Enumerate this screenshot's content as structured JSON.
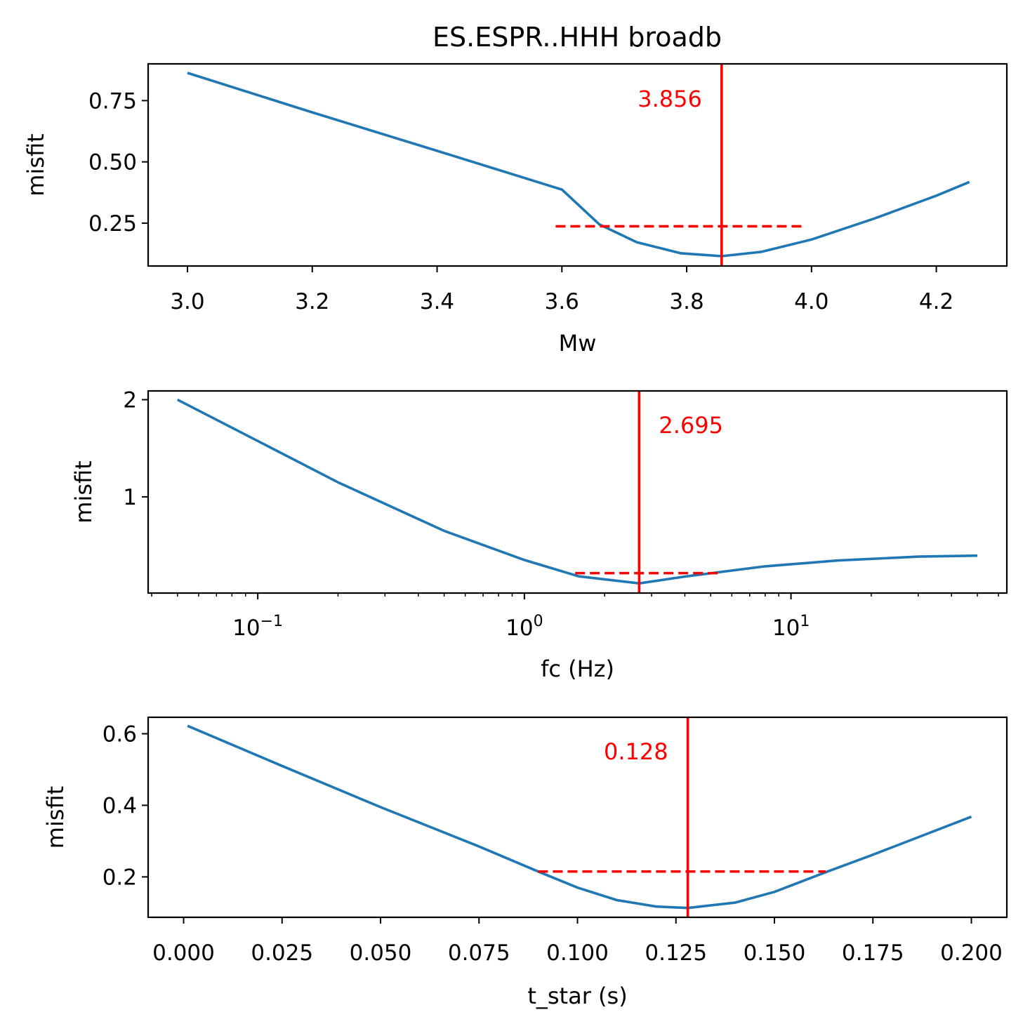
{
  "figure_title": "ES.ESPR..HHH broadb",
  "chart_data": [
    {
      "type": "line",
      "title": "ES.ESPR..HHH broadb",
      "xlabel": "Mw",
      "ylabel": "misfit",
      "xscale": "linear",
      "xlim": [
        2.937,
        4.313
      ],
      "ylim": [
        0.075,
        0.9
      ],
      "xticks": [
        3.0,
        3.2,
        3.4,
        3.6,
        3.8,
        4.0,
        4.2
      ],
      "xtick_labels": [
        "3.0",
        "3.2",
        "3.4",
        "3.6",
        "3.8",
        "4.0",
        "4.2"
      ],
      "yticks": [
        0.25,
        0.5,
        0.75
      ],
      "ytick_labels": [
        "0.25",
        "0.50",
        "0.75"
      ],
      "series": [
        {
          "color": "#1f77b4",
          "x": [
            3.0,
            3.2,
            3.4,
            3.6,
            3.66,
            3.72,
            3.79,
            3.856,
            3.92,
            4.0,
            4.1,
            4.2,
            4.253
          ],
          "y": [
            0.863,
            0.702,
            0.545,
            0.387,
            0.245,
            0.172,
            0.127,
            0.115,
            0.133,
            0.183,
            0.268,
            0.362,
            0.418
          ]
        }
      ],
      "best_value": 3.856,
      "best_value_label": "3.856",
      "range_line": {
        "x": [
          3.59,
          3.99
        ],
        "y": 0.237
      },
      "marker_color": "#ff0000",
      "grid": false
    },
    {
      "type": "line",
      "title": "",
      "xlabel": "fc (Hz)",
      "ylabel": "misfit",
      "xscale": "log",
      "xlim": [
        0.0388,
        64.5
      ],
      "ylim": [
        0.01,
        2.09
      ],
      "xticks": [
        0.1,
        1,
        10
      ],
      "xtick_labels": [
        "10⁻¹",
        "10⁰",
        "10¹"
      ],
      "yticks": [
        1,
        2
      ],
      "ytick_labels": [
        "1",
        "2"
      ],
      "series": [
        {
          "color": "#1f77b4",
          "x": [
            0.05,
            0.1,
            0.2,
            0.5,
            1.0,
            1.6,
            2.695,
            4.0,
            8.0,
            15.0,
            30.0,
            50.0
          ],
          "y": [
            2.0,
            1.575,
            1.15,
            0.65,
            0.35,
            0.182,
            0.11,
            0.18,
            0.285,
            0.345,
            0.385,
            0.395
          ]
        }
      ],
      "best_value": 2.695,
      "best_value_label": "2.695",
      "range_line": {
        "x": [
          1.55,
          5.4
        ],
        "y": 0.215
      },
      "marker_color": "#ff0000",
      "grid": false
    },
    {
      "type": "line",
      "title": "",
      "xlabel": "t_star (s)",
      "ylabel": "misfit",
      "xscale": "linear",
      "xlim": [
        -0.009,
        0.209
      ],
      "ylim": [
        0.087,
        0.646
      ],
      "xticks": [
        0.0,
        0.025,
        0.05,
        0.075,
        0.1,
        0.125,
        0.15,
        0.175,
        0.2
      ],
      "xtick_labels": [
        "0.000",
        "0.025",
        "0.050",
        "0.075",
        "0.100",
        "0.125",
        "0.150",
        "0.175",
        "0.200"
      ],
      "yticks": [
        0.2,
        0.4,
        0.6
      ],
      "ytick_labels": [
        "0.2",
        "0.4",
        "0.6"
      ],
      "series": [
        {
          "color": "#1f77b4",
          "x": [
            0.001,
            0.025,
            0.05,
            0.075,
            0.09,
            0.1,
            0.11,
            0.12,
            0.128,
            0.14,
            0.15,
            0.163,
            0.175,
            0.2
          ],
          "y": [
            0.622,
            0.51,
            0.395,
            0.285,
            0.215,
            0.17,
            0.135,
            0.117,
            0.113,
            0.128,
            0.158,
            0.213,
            0.262,
            0.368
          ]
        }
      ],
      "best_value": 0.128,
      "best_value_label": "0.128",
      "range_line": {
        "x": [
          0.09,
          0.163
        ],
        "y": 0.215
      },
      "marker_color": "#ff0000",
      "grid": false
    }
  ]
}
